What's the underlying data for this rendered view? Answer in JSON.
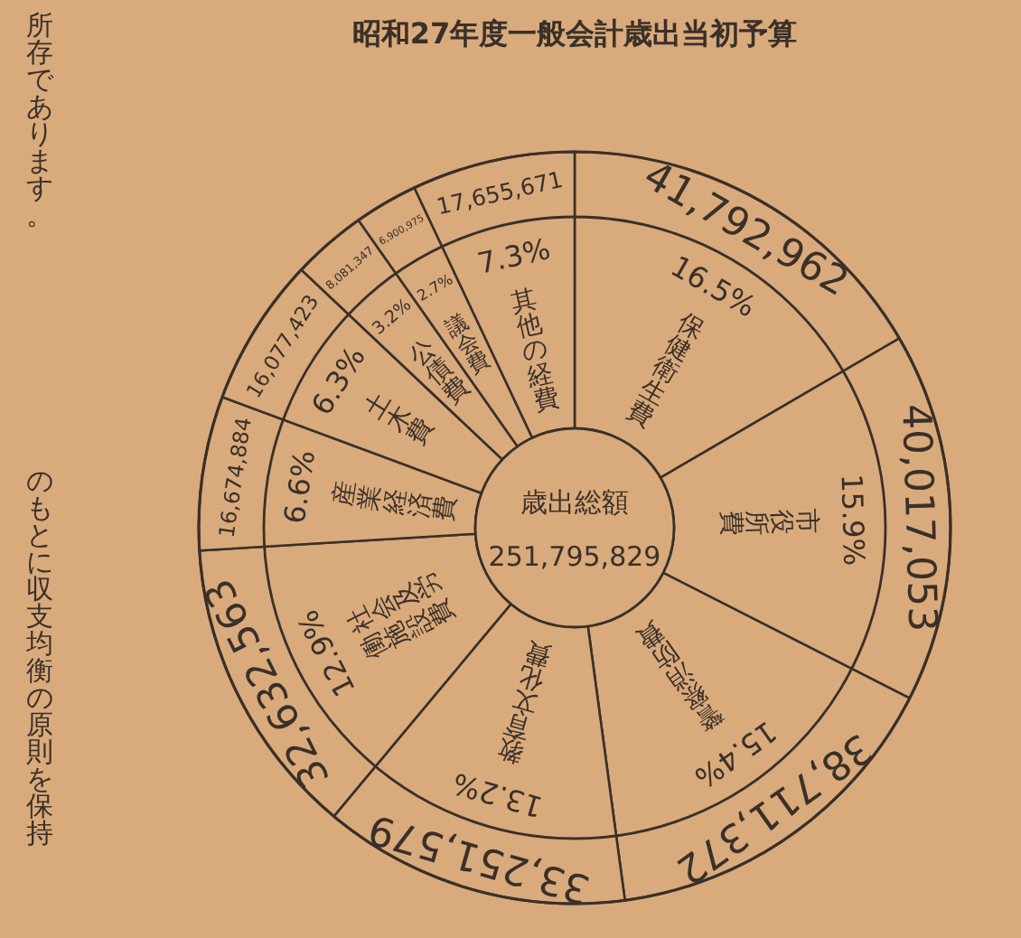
{
  "chart_data": {
    "type": "donut",
    "title": "昭和27年度一般会計歳出当初予算",
    "categories": [
      "保健衛生費",
      "市役所費",
      "警察消防費",
      "教育文化費",
      "社会及労働施設費",
      "産業経済費",
      "土木費",
      "公債費",
      "議会費",
      "其他の経費"
    ],
    "values": [
      41792962,
      40017053,
      38711372,
      33251579,
      32632563,
      16674884,
      16077423,
      8081347,
      6900975,
      17655671
    ],
    "value_labels": [
      "41,792,962",
      "40,017,053",
      "38,711,372",
      "33,251,579",
      "32,632,563",
      "16,674,884",
      "16,077,423",
      "8,081,347",
      "6,900,975",
      "17,655,671"
    ],
    "colors": [
      "#d9aa7c",
      "#d9aa7c",
      "#d9aa7c",
      "#d9aa7c",
      "#d9aa7c",
      "#d9aa7c",
      "#d9aa7c",
      "#d9aa7c",
      "#d9aa7c",
      "#d9aa7c"
    ],
    "annotations": [
      "歳出総額",
      "251,795,829",
      "所存であります。",
      "のもとに収支均衡の原則を保持",
      "16.5%",
      "15.9%",
      "15.4%",
      "13.2%",
      "12.9%",
      "6.6%",
      "6.3%",
      "3.2%",
      "2.7%",
      "7.3%"
    ]
  }
}
